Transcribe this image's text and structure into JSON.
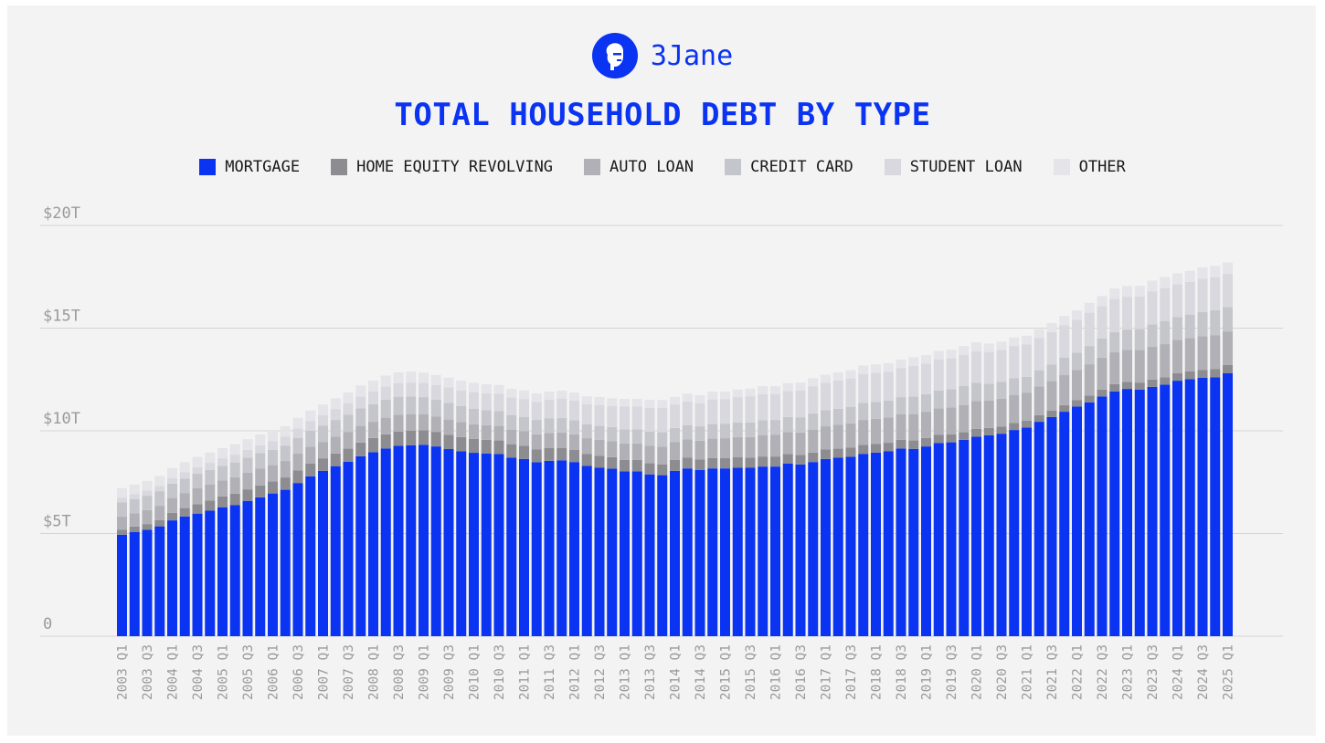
{
  "brand": {
    "name": "3Jane",
    "icon": "face-logo-icon",
    "color": "#0a33f2"
  },
  "chart_data": {
    "type": "bar",
    "stacked": true,
    "title": "TOTAL HOUSEHOLD DEBT BY TYPE",
    "legend_position": "top",
    "grid": true,
    "ylim": [
      0,
      20
    ],
    "y_ticks": [
      0,
      5,
      10,
      15,
      20
    ],
    "y_tick_labels": [
      "0",
      "$5T",
      "$10T",
      "$15T",
      "$20T"
    ],
    "categories": [
      "2003 Q1",
      "2003 Q2",
      "2003 Q3",
      "2003 Q4",
      "2004 Q1",
      "2004 Q2",
      "2004 Q3",
      "2004 Q4",
      "2005 Q1",
      "2005 Q2",
      "2005 Q3",
      "2005 Q4",
      "2006 Q1",
      "2006 Q2",
      "2006 Q3",
      "2006 Q4",
      "2007 Q1",
      "2007 Q2",
      "2007 Q3",
      "2007 Q4",
      "2008 Q1",
      "2008 Q2",
      "2008 Q3",
      "2008 Q4",
      "2009 Q1",
      "2009 Q2",
      "2009 Q3",
      "2009 Q4",
      "2010 Q1",
      "2010 Q2",
      "2010 Q3",
      "2010 Q4",
      "2011 Q1",
      "2011 Q2",
      "2011 Q3",
      "2011 Q4",
      "2012 Q1",
      "2012 Q2",
      "2012 Q3",
      "2012 Q4",
      "2013 Q1",
      "2013 Q2",
      "2013 Q3",
      "2013 Q4",
      "2014 Q1",
      "2014 Q2",
      "2014 Q3",
      "2014 Q4",
      "2015 Q1",
      "2015 Q2",
      "2015 Q3",
      "2015 Q4",
      "2016 Q1",
      "2016 Q2",
      "2016 Q3",
      "2016 Q4",
      "2017 Q1",
      "2017 Q2",
      "2017 Q3",
      "2017 Q4",
      "2018 Q1",
      "2018 Q2",
      "2018 Q3",
      "2018 Q4",
      "2019 Q1",
      "2019 Q2",
      "2019 Q3",
      "2019 Q4",
      "2020 Q1",
      "2020 Q2",
      "2020 Q3",
      "2020 Q4",
      "2021 Q1",
      "2021 Q2",
      "2021 Q3",
      "2021 Q4",
      "2022 Q1",
      "2022 Q2",
      "2022 Q3",
      "2022 Q4",
      "2023 Q1",
      "2023 Q2",
      "2023 Q3",
      "2023 Q4",
      "2024 Q1",
      "2024 Q2",
      "2024 Q3",
      "2024 Q4",
      "2025 Q1"
    ],
    "x_tick_labels_shown": [
      "2003 Q1",
      "2003 Q3",
      "2004 Q1",
      "2004 Q3",
      "2005 Q1",
      "2005 Q3",
      "2006 Q1",
      "2006 Q3",
      "2007 Q1",
      "2007 Q3",
      "2008 Q1",
      "2008 Q3",
      "2009 Q1",
      "2009 Q3",
      "2010 Q1",
      "2010 Q3",
      "2011 Q1",
      "2011 Q3",
      "2012 Q1",
      "2012 Q3",
      "2013 Q1",
      "2013 Q3",
      "2014 Q1",
      "2014 Q3",
      "2015 Q1",
      "2015 Q3",
      "2016 Q1",
      "2016 Q3",
      "2017 Q1",
      "2017 Q3",
      "2018 Q1",
      "2018 Q3",
      "2019 Q1",
      "2019 Q3",
      "2020 Q1",
      "2020 Q3",
      "2021 Q1",
      "2021 Q3",
      "2022 Q1",
      "2022 Q3",
      "2023 Q1",
      "2023 Q3",
      "2024 Q1",
      "2024 Q3",
      "2025 Q1"
    ],
    "series": [
      {
        "name": "MORTGAGE",
        "color": "#0a33f2",
        "values": [
          4.94,
          5.08,
          5.18,
          5.35,
          5.64,
          5.83,
          5.97,
          6.11,
          6.28,
          6.39,
          6.59,
          6.76,
          6.95,
          7.13,
          7.46,
          7.78,
          8.05,
          8.28,
          8.49,
          8.76,
          8.96,
          9.14,
          9.27,
          9.3,
          9.32,
          9.24,
          9.11,
          9.01,
          8.93,
          8.89,
          8.87,
          8.7,
          8.63,
          8.47,
          8.54,
          8.56,
          8.48,
          8.29,
          8.2,
          8.16,
          8.03,
          8.03,
          7.88,
          7.84,
          8.05,
          8.17,
          8.1,
          8.17,
          8.17,
          8.21,
          8.2,
          8.26,
          8.26,
          8.4,
          8.36,
          8.48,
          8.63,
          8.69,
          8.74,
          8.88,
          8.94,
          9.0,
          9.14,
          9.12,
          9.24,
          9.41,
          9.44,
          9.56,
          9.71,
          9.78,
          9.86,
          10.04,
          10.16,
          10.44,
          10.67,
          10.93,
          11.18,
          11.39,
          11.67,
          11.92,
          12.04,
          12.01,
          12.14,
          12.25,
          12.44,
          12.52,
          12.59,
          12.61,
          12.8
        ]
      },
      {
        "name": "HOME EQUITY REVOLVING",
        "color": "#8c8c91",
        "values": [
          0.24,
          0.26,
          0.28,
          0.3,
          0.37,
          0.41,
          0.46,
          0.5,
          0.53,
          0.55,
          0.56,
          0.58,
          0.59,
          0.6,
          0.61,
          0.62,
          0.61,
          0.62,
          0.64,
          0.67,
          0.69,
          0.69,
          0.7,
          0.71,
          0.71,
          0.71,
          0.7,
          0.69,
          0.68,
          0.67,
          0.66,
          0.65,
          0.64,
          0.63,
          0.63,
          0.61,
          0.6,
          0.59,
          0.58,
          0.56,
          0.56,
          0.55,
          0.54,
          0.53,
          0.53,
          0.52,
          0.51,
          0.51,
          0.51,
          0.5,
          0.5,
          0.49,
          0.49,
          0.47,
          0.47,
          0.46,
          0.46,
          0.44,
          0.44,
          0.44,
          0.43,
          0.42,
          0.42,
          0.41,
          0.41,
          0.39,
          0.38,
          0.37,
          0.39,
          0.36,
          0.35,
          0.34,
          0.33,
          0.32,
          0.32,
          0.32,
          0.32,
          0.33,
          0.34,
          0.35,
          0.34,
          0.34,
          0.36,
          0.36,
          0.36,
          0.37,
          0.38,
          0.39,
          0.4
        ]
      },
      {
        "name": "AUTO LOAN",
        "color": "#b0b0b6",
        "values": [
          0.64,
          0.64,
          0.68,
          0.7,
          0.72,
          0.73,
          0.77,
          0.77,
          0.78,
          0.8,
          0.81,
          0.83,
          0.79,
          0.8,
          0.82,
          0.82,
          0.8,
          0.81,
          0.82,
          0.81,
          0.79,
          0.81,
          0.81,
          0.79,
          0.77,
          0.74,
          0.74,
          0.72,
          0.71,
          0.71,
          0.71,
          0.71,
          0.71,
          0.73,
          0.73,
          0.75,
          0.75,
          0.76,
          0.78,
          0.78,
          0.8,
          0.81,
          0.85,
          0.86,
          0.88,
          0.9,
          0.91,
          0.94,
          0.96,
          0.99,
          1.0,
          1.03,
          1.05,
          1.07,
          1.09,
          1.12,
          1.13,
          1.16,
          1.18,
          1.21,
          1.22,
          1.23,
          1.24,
          1.27,
          1.28,
          1.3,
          1.32,
          1.33,
          1.35,
          1.34,
          1.36,
          1.37,
          1.37,
          1.4,
          1.44,
          1.46,
          1.47,
          1.52,
          1.55,
          1.55,
          1.56,
          1.58,
          1.6,
          1.61,
          1.62,
          1.63,
          1.64,
          1.66,
          1.64
        ]
      },
      {
        "name": "CREDIT CARD",
        "color": "#c5c5cc",
        "values": [
          0.69,
          0.69,
          0.7,
          0.71,
          0.7,
          0.7,
          0.71,
          0.72,
          0.71,
          0.72,
          0.73,
          0.74,
          0.74,
          0.75,
          0.77,
          0.78,
          0.8,
          0.82,
          0.84,
          0.85,
          0.86,
          0.87,
          0.88,
          0.87,
          0.84,
          0.82,
          0.81,
          0.78,
          0.76,
          0.74,
          0.72,
          0.71,
          0.7,
          0.7,
          0.7,
          0.7,
          0.68,
          0.68,
          0.68,
          0.68,
          0.68,
          0.68,
          0.7,
          0.7,
          0.68,
          0.69,
          0.7,
          0.71,
          0.71,
          0.71,
          0.71,
          0.73,
          0.73,
          0.73,
          0.74,
          0.78,
          0.78,
          0.78,
          0.81,
          0.83,
          0.82,
          0.82,
          0.84,
          0.87,
          0.85,
          0.87,
          0.88,
          0.93,
          0.89,
          0.82,
          0.82,
          0.82,
          0.77,
          0.79,
          0.8,
          0.86,
          0.84,
          0.89,
          0.93,
          0.99,
          0.99,
          1.03,
          1.08,
          1.13,
          1.12,
          1.14,
          1.17,
          1.21,
          1.18
        ]
      },
      {
        "name": "STUDENT LOAN",
        "color": "#d8d8de",
        "values": [
          0.24,
          0.25,
          0.25,
          0.26,
          0.27,
          0.31,
          0.32,
          0.34,
          0.36,
          0.38,
          0.38,
          0.39,
          0.42,
          0.43,
          0.45,
          0.48,
          0.51,
          0.53,
          0.55,
          0.58,
          0.61,
          0.64,
          0.66,
          0.68,
          0.69,
          0.72,
          0.75,
          0.77,
          0.8,
          0.82,
          0.84,
          0.85,
          0.87,
          0.88,
          0.91,
          0.95,
          0.96,
          0.97,
          1.02,
          1.03,
          1.11,
          1.12,
          1.15,
          1.18,
          1.14,
          1.15,
          1.13,
          1.2,
          1.19,
          1.23,
          1.27,
          1.28,
          1.26,
          1.26,
          1.3,
          1.33,
          1.34,
          1.38,
          1.38,
          1.41,
          1.41,
          1.41,
          1.42,
          1.49,
          1.49,
          1.51,
          1.51,
          1.51,
          1.54,
          1.54,
          1.54,
          1.56,
          1.58,
          1.56,
          1.58,
          1.58,
          1.59,
          1.62,
          1.58,
          1.61,
          1.6,
          1.57,
          1.6,
          1.6,
          1.6,
          1.59,
          1.63,
          1.61,
          1.63
        ]
      },
      {
        "name": "OTHER",
        "color": "#e4e4e9",
        "values": [
          0.46,
          0.46,
          0.47,
          0.48,
          0.48,
          0.49,
          0.5,
          0.5,
          0.5,
          0.51,
          0.52,
          0.52,
          0.51,
          0.51,
          0.52,
          0.51,
          0.51,
          0.52,
          0.53,
          0.54,
          0.54,
          0.54,
          0.53,
          0.54,
          0.5,
          0.49,
          0.48,
          0.47,
          0.45,
          0.44,
          0.43,
          0.42,
          0.42,
          0.41,
          0.4,
          0.39,
          0.39,
          0.39,
          0.39,
          0.38,
          0.37,
          0.37,
          0.39,
          0.39,
          0.37,
          0.38,
          0.38,
          0.38,
          0.37,
          0.37,
          0.38,
          0.39,
          0.38,
          0.39,
          0.39,
          0.39,
          0.39,
          0.39,
          0.4,
          0.41,
          0.41,
          0.41,
          0.41,
          0.42,
          0.41,
          0.41,
          0.42,
          0.43,
          0.43,
          0.41,
          0.41,
          0.42,
          0.42,
          0.43,
          0.44,
          0.45,
          0.46,
          0.48,
          0.49,
          0.51,
          0.52,
          0.53,
          0.53,
          0.54,
          0.53,
          0.54,
          0.55,
          0.55,
          0.55
        ]
      }
    ]
  }
}
